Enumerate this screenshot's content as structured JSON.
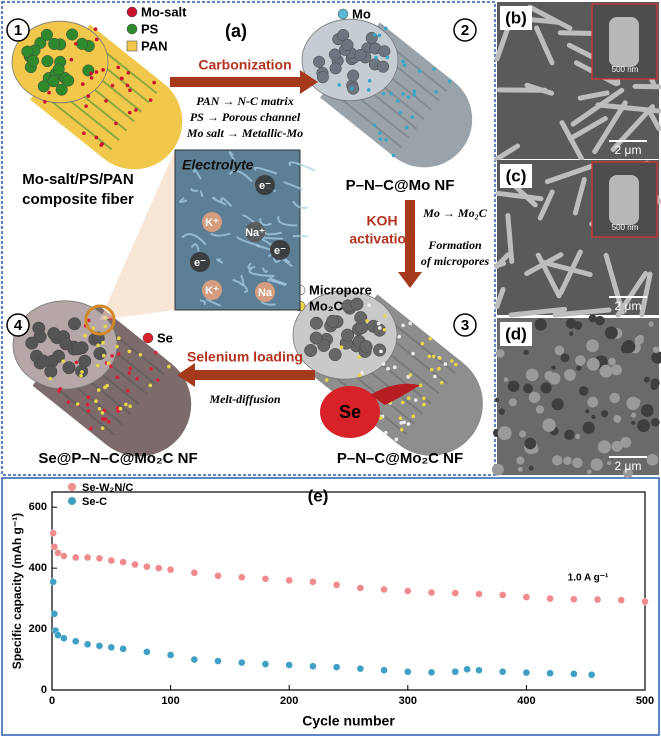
{
  "panel_a": {
    "label": "(a)",
    "steps": [
      "1",
      "2",
      "3",
      "4"
    ],
    "legend_1": [
      "Mo-salt",
      "PS",
      "PAN"
    ],
    "legend_2": "Mo",
    "legend_3": [
      "Micropore",
      "Mo₂C"
    ],
    "legend_4": "Se",
    "fiber_1": [
      "Mo-salt/PS/PAN",
      "composite fiber"
    ],
    "fiber_2": "P–N–C@Mo NF",
    "fiber_3": "P–N–C@Mo₂C NF",
    "fiber_4": "Se@P–N–C@Mo₂C NF",
    "arrow_1": {
      "title": "Carbonization",
      "notes": [
        "PAN → N-C matrix",
        "PS → Porous channel",
        "Mo salt → Metallic-Mo"
      ]
    },
    "arrow_2": {
      "title": [
        "KOH",
        "activation"
      ],
      "notes": [
        "Mo → Mo₂C",
        "Formation",
        "of micropores"
      ]
    },
    "arrow_3": {
      "title": "Selenium loading",
      "notes": [
        "Melt-diffusion"
      ]
    },
    "inset": {
      "title": "Electrolyte",
      "ions": [
        "e⁻",
        "K⁺",
        "Na⁺",
        "e⁻",
        "e⁻",
        "K⁺",
        "Na"
      ]
    },
    "blob": "Se"
  },
  "micrographs": [
    {
      "label": "(b)",
      "scale": "2 μm",
      "inset_scale": "500 nm"
    },
    {
      "label": "(c)",
      "scale": "2 μm",
      "inset_scale": "500 nm"
    },
    {
      "label": "(d)",
      "scale": "2 μm"
    }
  ],
  "chart_data": {
    "type": "scatter",
    "label": "(e)",
    "xlabel": "Cycle number",
    "ylabel": "Specific capacity (mAh g⁻¹)",
    "annotation": "1.0 A g⁻¹",
    "xlim": [
      0,
      500
    ],
    "ylim": [
      0,
      650
    ],
    "xticks": [
      0,
      100,
      200,
      300,
      400,
      500
    ],
    "yticks": [
      0,
      200,
      400,
      600
    ],
    "series": [
      {
        "name": "Se-W₂N/C",
        "color": "#f08a8e",
        "x": [
          1,
          2,
          5,
          10,
          20,
          30,
          40,
          50,
          60,
          70,
          80,
          90,
          100,
          120,
          140,
          160,
          180,
          200,
          220,
          240,
          260,
          280,
          300,
          320,
          340,
          360,
          380,
          400,
          420,
          440,
          460,
          480,
          500
        ],
        "values": [
          515,
          470,
          450,
          440,
          435,
          435,
          432,
          425,
          420,
          412,
          405,
          400,
          395,
          385,
          375,
          370,
          365,
          360,
          355,
          345,
          335,
          330,
          325,
          320,
          318,
          315,
          312,
          305,
          300,
          298,
          297,
          295,
          290
        ]
      },
      {
        "name": "Se-C",
        "color": "#3f9fc4",
        "x": [
          1,
          2,
          3,
          5,
          10,
          20,
          30,
          40,
          50,
          60,
          80,
          100,
          120,
          140,
          160,
          180,
          200,
          220,
          240,
          260,
          280,
          300,
          320,
          340,
          350,
          360,
          380,
          400,
          420,
          440,
          455
        ],
        "values": [
          355,
          250,
          195,
          180,
          170,
          160,
          150,
          145,
          140,
          135,
          125,
          115,
          100,
          95,
          90,
          85,
          82,
          78,
          75,
          70,
          65,
          60,
          58,
          60,
          68,
          65,
          60,
          57,
          55,
          53,
          50
        ]
      }
    ]
  }
}
